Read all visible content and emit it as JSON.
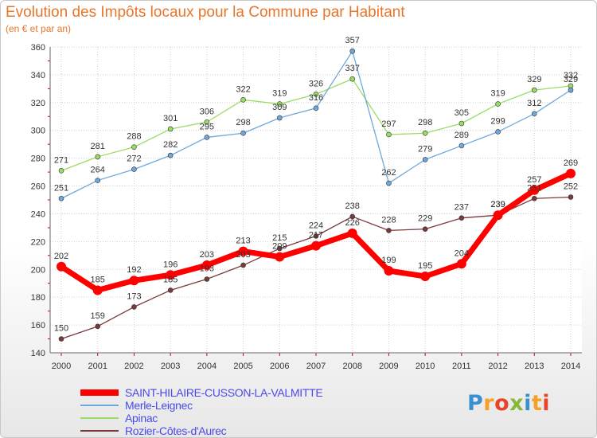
{
  "title": "Evolution des Impôts locaux pour la Commune par Habitant",
  "subtitle": "(en € et par an)",
  "logo": {
    "letters": [
      "P",
      "r",
      "o",
      "x",
      "i",
      "t",
      "i"
    ],
    "colors": [
      "#3a8fd0",
      "#f4a02a",
      "#e8442a",
      "#86b83a",
      "#3a8fd0",
      "#f4a02a",
      "#e8442a"
    ]
  },
  "chart_data": {
    "type": "line",
    "x": [
      "2000",
      "2001",
      "2002",
      "2003",
      "2004",
      "2005",
      "2006",
      "2007",
      "2008",
      "2009",
      "2010",
      "2011",
      "2012",
      "2013",
      "2014"
    ],
    "ylim": [
      140,
      360
    ],
    "yticks": [
      140,
      160,
      180,
      200,
      220,
      240,
      260,
      280,
      300,
      320,
      340,
      360
    ],
    "grid": true,
    "legend": "bottom-left",
    "series": [
      {
        "name": "SAINT-HILAIRE-CUSSON-LA-VALMITTE",
        "color": "#ff0000",
        "label_color": "#4a4ae8",
        "values": [
          202,
          185,
          192,
          196,
          203,
          213,
          209,
          217,
          226,
          199,
          195,
          204,
          239,
          257,
          269
        ]
      },
      {
        "name": "Merle-Leignec",
        "color": "#6fa8dc",
        "label_color": "#4a4ae8",
        "values": [
          251,
          264,
          272,
          282,
          295,
          298,
          309,
          316,
          357,
          262,
          279,
          289,
          299,
          312,
          329
        ]
      },
      {
        "name": "Apinac",
        "color": "#99dd66",
        "label_color": "#4a4ae8",
        "values": [
          271,
          281,
          288,
          301,
          306,
          322,
          319,
          326,
          337,
          297,
          298,
          305,
          319,
          329,
          332
        ]
      },
      {
        "name": "Rozier-Côtes-d'Aurec",
        "color": "#7a3a3a",
        "label_color": "#4a4ae8",
        "values": [
          150,
          159,
          173,
          185,
          193,
          203,
          215,
          224,
          238,
          228,
          229,
          237,
          239,
          251,
          252
        ]
      }
    ]
  }
}
